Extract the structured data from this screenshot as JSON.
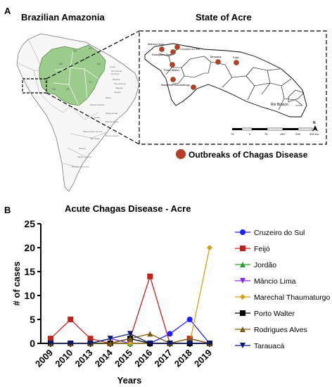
{
  "panel_a": {
    "label": "A",
    "left_title": "Brazilian Amazonia",
    "right_title": "State of Acre",
    "legend_text": "Outbreaks of Chagas Disease",
    "marker_color": "#c0392b",
    "marker_stroke": "#8b5a2b",
    "amazonia_fill": "#9ccc8c",
    "map_labels": {
      "mancio_lima": "Mâncio Lima",
      "rodrigues_alves": "Rodrigues Alves",
      "cruzeiro": "Cruzeiro do Sul",
      "porto_walter": "Porto Walter",
      "marechal": "Marechal Thaumaturgo",
      "tarauaca": "Tarauacá",
      "feijo": "Feijó",
      "rio_branco": "Rio Branco"
    },
    "scale_ticks": [
      "75",
      "0",
      "75",
      "150",
      "225",
      "300 km"
    ],
    "north_label": "N"
  },
  "panel_b": {
    "label": "B",
    "title": "Acute Chagas Disease - Acre"
  },
  "chart_data": {
    "type": "line",
    "title": "Acute Chagas Disease - Acre",
    "xlabel": "Years",
    "ylabel": "# of cases",
    "categories": [
      "2009",
      "2010",
      "2013",
      "2014",
      "2015",
      "2016",
      "2017",
      "2018",
      "2019"
    ],
    "ylim": [
      0,
      25
    ],
    "yticks": [
      0,
      5,
      10,
      15,
      20,
      25
    ],
    "grid": false,
    "legend_position": "right",
    "series": [
      {
        "name": "Cruzeiro do Sul",
        "color": "#1f1fff",
        "marker": "circle",
        "values": [
          0,
          0,
          0,
          0,
          0,
          0,
          2,
          5,
          0
        ]
      },
      {
        "name": "Feijó",
        "color": "#c0221c",
        "marker": "square",
        "values": [
          1,
          5,
          1,
          0,
          1,
          14,
          0,
          1,
          0
        ]
      },
      {
        "name": "Jordão",
        "color": "#2ca02c",
        "marker": "triangle-up",
        "values": [
          0,
          0,
          0,
          0,
          0,
          0,
          0,
          0,
          0
        ]
      },
      {
        "name": "Mâncio Lima",
        "color": "#8a2be2",
        "marker": "triangle-down",
        "values": [
          0,
          0,
          0,
          1,
          0,
          0,
          0,
          0,
          0
        ]
      },
      {
        "name": "Marechal Thaumaturgo",
        "color": "#d4a017",
        "marker": "diamond",
        "values": [
          0,
          0,
          0,
          0,
          0,
          0,
          0,
          0,
          20
        ]
      },
      {
        "name": "Porto Walter",
        "color": "#000000",
        "marker": "square",
        "values": [
          0,
          0,
          0,
          0,
          1,
          0,
          0,
          0,
          0
        ]
      },
      {
        "name": "Rodrigues Alves",
        "color": "#7a5a12",
        "marker": "triangle-up",
        "values": [
          0,
          0,
          0,
          0,
          1,
          2,
          0,
          1,
          0
        ]
      },
      {
        "name": "Tarauacá",
        "color": "#0a1a7a",
        "marker": "triangle-down",
        "values": [
          0,
          0,
          0,
          1,
          2,
          0,
          0,
          0,
          0
        ]
      }
    ]
  }
}
